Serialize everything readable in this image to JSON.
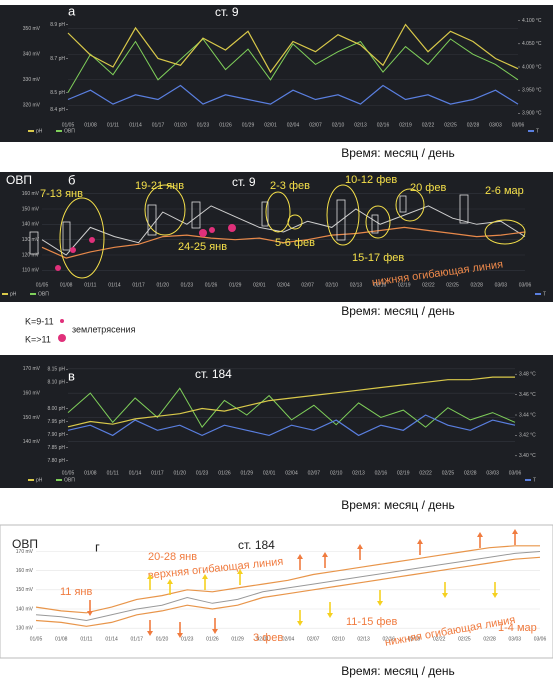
{
  "chart_data": [
    {
      "type": "line",
      "letter": "а",
      "station": "ст. 9",
      "xlabel": "Время: месяц / день",
      "categories": [
        "01/05",
        "01/08",
        "01/11",
        "01/14",
        "01/17",
        "01/20",
        "01/23",
        "01/26",
        "01/29",
        "02/01",
        "02/04",
        "02/07",
        "02/10",
        "02/13",
        "02/16",
        "02/19",
        "02/22",
        "02/25",
        "02/28",
        "03/03",
        "03/06"
      ],
      "ylim": [
        315,
        355
      ],
      "yticks": [
        {
          "value": 320,
          "label": "320 mV"
        },
        {
          "value": 330,
          "label": "330 mV"
        },
        {
          "value": 340,
          "label": "340 mV"
        },
        {
          "value": 350,
          "label": "350 mV"
        }
      ],
      "y3lim": [
        8.35,
        8.95
      ],
      "y3ticks": [
        {
          "value": 8.4,
          "label": "8.4 pH"
        },
        {
          "value": 8.5,
          "label": "8.5 pH"
        },
        {
          "value": 8.7,
          "label": "8.7 pH"
        },
        {
          "value": 8.9,
          "label": "8.9 pH"
        }
      ],
      "y2lim": [
        3.89,
        4.11
      ],
      "y2ticks": [
        {
          "value": 3.9,
          "label": "3.900 °C"
        },
        {
          "value": 3.95,
          "label": "3.950 °C"
        },
        {
          "value": 4.0,
          "label": "4.000 °C"
        },
        {
          "value": 4.05,
          "label": "4.050 °C"
        },
        {
          "value": 4.1,
          "label": "4.100 °C"
        }
      ],
      "legend": [
        {
          "name": "pH",
          "color": "#d9c94a"
        },
        {
          "name": "ОВП",
          "color": "#7fcf5a"
        },
        {
          "name": "T",
          "color": "#5a7fe0"
        }
      ],
      "series": [
        {
          "color": "#7fcf5a",
          "axis": "y",
          "values": [
            325,
            340,
            332,
            345,
            330,
            338,
            346,
            334,
            342,
            330,
            344,
            336,
            341,
            345,
            333,
            343,
            336,
            346,
            340,
            336,
            330
          ]
        },
        {
          "color": "#d9c94a",
          "axis": "y3",
          "values": [
            8.85,
            8.72,
            8.65,
            8.88,
            8.7,
            8.66,
            8.82,
            8.75,
            8.86,
            8.62,
            8.8,
            8.74,
            8.84,
            8.78,
            8.66,
            8.9,
            8.74,
            8.86,
            8.8,
            8.7,
            8.64
          ]
        },
        {
          "color": "#5a7fe0",
          "axis": "y2",
          "values": [
            3.93,
            3.95,
            3.92,
            3.94,
            3.93,
            3.96,
            3.92,
            3.94,
            3.93,
            3.92,
            3.95,
            3.93,
            3.94,
            3.92,
            3.96,
            3.93,
            3.94,
            3.92,
            3.93,
            3.95,
            3.92
          ]
        }
      ]
    },
    {
      "type": "line",
      "letter": "б",
      "station": "ст. 9",
      "ylabel": "ОВП",
      "xlabel": "Время: месяц / день",
      "categories": [
        "01/05",
        "01/08",
        "01/11",
        "01/14",
        "01/17",
        "01/20",
        "01/23",
        "01/26",
        "01/29",
        "02/01",
        "02/04",
        "02/07",
        "02/10",
        "02/13",
        "02/16",
        "02/19",
        "02/22",
        "02/25",
        "02/28",
        "03/03",
        "03/06"
      ],
      "ylim": [
        105,
        165
      ],
      "yticks": [
        {
          "value": 110,
          "label": "110 mV"
        },
        {
          "value": 120,
          "label": "120 mV"
        },
        {
          "value": 130,
          "label": "130 mV"
        },
        {
          "value": 140,
          "label": "140 mV"
        },
        {
          "value": 150,
          "label": "150 mV"
        },
        {
          "value": 160,
          "label": "160 mV"
        }
      ],
      "legend": [
        {
          "name": "pH",
          "color": "#d9c94a"
        },
        {
          "name": "ОВП",
          "color": "#7fcf5a"
        },
        {
          "name": "T",
          "color": "#5a7fe0"
        }
      ],
      "series": [
        {
          "color": "#cfcfcf",
          "axis": "y",
          "values": [
            130,
            120,
            138,
            132,
            128,
            148,
            140,
            152,
            145,
            138,
            135,
            142,
            138,
            150,
            140,
            146,
            152,
            144,
            140,
            142,
            132
          ]
        },
        {
          "color": "#e8894a",
          "axis": "y",
          "values": [
            125,
            118,
            122,
            125,
            127,
            132,
            133,
            131,
            130,
            131,
            128,
            130,
            133,
            134,
            136,
            138,
            136,
            134,
            132,
            133,
            135
          ]
        }
      ],
      "annotations": [
        "7-13 янв",
        "19-21 янв",
        "2-3 фев",
        "10-12 фев",
        "20 фев",
        "2-6 мар",
        "24-25 янв",
        "5-6 фев",
        "15-17 фев",
        "нижняя огибающая линия"
      ]
    },
    {
      "type": "line",
      "letter": "в",
      "station": "ст. 184",
      "xlabel": "Время: месяц / день",
      "categories": [
        "01/05",
        "01/08",
        "01/11",
        "01/14",
        "01/17",
        "01/20",
        "01/23",
        "01/26",
        "01/29",
        "02/01",
        "02/04",
        "02/07",
        "02/10",
        "02/13",
        "02/16",
        "02/19",
        "02/22",
        "02/25",
        "02/28",
        "03/03",
        "03/06"
      ],
      "ylim": [
        130,
        172
      ],
      "yticks": [
        {
          "value": 140,
          "label": "140 mV"
        },
        {
          "value": 150,
          "label": "150 mV"
        },
        {
          "value": 160,
          "label": "160 mV"
        },
        {
          "value": 170,
          "label": "170 mV"
        }
      ],
      "y3lim": [
        7.78,
        8.17
      ],
      "y3ticks": [
        {
          "value": 7.8,
          "label": "7.80 pH"
        },
        {
          "value": 7.85,
          "label": "7.85 pH"
        },
        {
          "value": 7.9,
          "label": "7.90 pH"
        },
        {
          "value": 7.95,
          "label": "7.95 pH"
        },
        {
          "value": 8.0,
          "label": "8.00 pH"
        },
        {
          "value": 8.1,
          "label": "8.10 pH"
        },
        {
          "value": 8.15,
          "label": "8.15 pH"
        }
      ],
      "y2lim": [
        3.39,
        3.49
      ],
      "y2ticks": [
        {
          "value": 3.4,
          "label": "3.40 °C"
        },
        {
          "value": 3.42,
          "label": "3.42 °C"
        },
        {
          "value": 3.44,
          "label": "3.44 °C"
        },
        {
          "value": 3.46,
          "label": "3.46 °C"
        },
        {
          "value": 3.48,
          "label": "3.48 °C"
        }
      ],
      "legend": [
        {
          "name": "pH",
          "color": "#d9c94a"
        },
        {
          "name": "ОВП",
          "color": "#7fcf5a"
        },
        {
          "name": "T",
          "color": "#5a7fe0"
        }
      ],
      "series": [
        {
          "color": "#7fcf5a",
          "axis": "y",
          "values": [
            152,
            160,
            148,
            158,
            150,
            162,
            146,
            157,
            151,
            159,
            149,
            155,
            147,
            156,
            150,
            153,
            146,
            154,
            149,
            152,
            148
          ]
        },
        {
          "color": "#5a7fe0",
          "axis": "y2",
          "values": [
            3.425,
            3.43,
            3.42,
            3.435,
            3.425,
            3.43,
            3.42,
            3.43,
            3.425,
            3.42,
            3.43,
            3.425,
            3.435,
            3.42,
            3.43,
            3.425,
            3.44,
            3.43,
            3.425,
            3.435,
            3.43
          ]
        },
        {
          "color": "#d9c94a",
          "axis": "y3",
          "values": [
            7.93,
            7.95,
            7.94,
            7.96,
            7.97,
            7.98,
            8.0,
            7.99,
            8.01,
            8.03,
            8.04,
            8.05,
            8.06,
            8.07,
            8.08,
            8.09,
            8.1,
            8.11,
            8.11,
            8.12,
            8.12
          ]
        }
      ]
    },
    {
      "type": "line",
      "letter": "г",
      "station": "ст. 184",
      "ylabel": "ОВП",
      "xlabel": "Время: месяц / день",
      "categories": [
        "01/05",
        "01/08",
        "01/11",
        "01/14",
        "01/17",
        "01/20",
        "01/23",
        "01/26",
        "01/29",
        "02/01",
        "02/04",
        "02/07",
        "02/10",
        "02/13",
        "02/16",
        "02/19",
        "02/22",
        "02/25",
        "02/28",
        "03/03",
        "03/06"
      ],
      "ylim": [
        128,
        176
      ],
      "yticks": [
        {
          "value": 130,
          "label": "130 mV"
        },
        {
          "value": 140,
          "label": "140 mV"
        },
        {
          "value": 150,
          "label": "150 mV"
        },
        {
          "value": 160,
          "label": "160 mV"
        },
        {
          "value": 170,
          "label": "170 mV"
        }
      ],
      "series": [
        {
          "color": "#999999",
          "axis": "y",
          "values": [
            137,
            136,
            134,
            137,
            140,
            142,
            146,
            143,
            145,
            149,
            151,
            153,
            155,
            157,
            159,
            161,
            163,
            165,
            167,
            169,
            170
          ]
        },
        {
          "color": "#e8954a",
          "axis": "y",
          "values": [
            141,
            139,
            138,
            141,
            145,
            147,
            150,
            149,
            151,
            153,
            155,
            158,
            160,
            162,
            164,
            166,
            168,
            170,
            172,
            173,
            173
          ]
        },
        {
          "color": "#e8954a",
          "axis": "y",
          "values": [
            134,
            133,
            131,
            133,
            137,
            139,
            142,
            140,
            142,
            146,
            148,
            150,
            152,
            154,
            156,
            158,
            160,
            162,
            164,
            166,
            167
          ]
        }
      ],
      "annotations": [
        "20-28 янв",
        "верхняя огибающая линия",
        "11 янв",
        "3 фев",
        "11-15 фев",
        "нижняя огибающая линия",
        "1-4 мар"
      ]
    }
  ],
  "earthquake_legend": {
    "small": "K=9-11",
    "large": "K=>11",
    "label": "землетрясения"
  }
}
